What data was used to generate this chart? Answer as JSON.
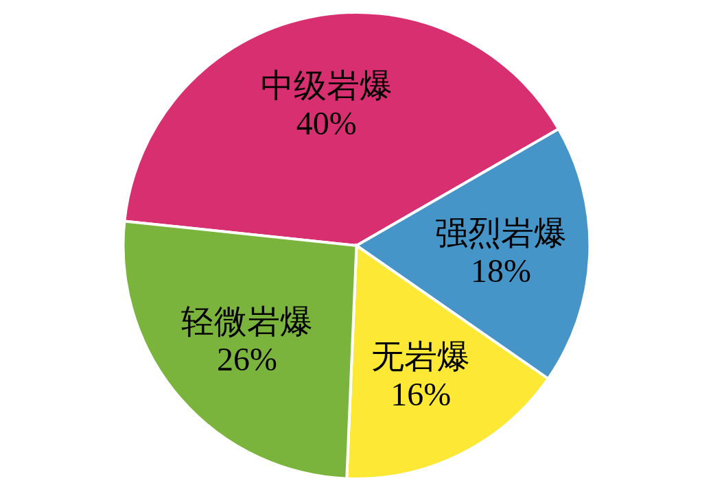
{
  "chart_data": {
    "type": "pie",
    "categories": [
      "中级岩爆",
      "强烈岩爆",
      "无岩爆",
      "轻微岩爆"
    ],
    "values": [
      40,
      18,
      16,
      26
    ],
    "colors": [
      "#d72f6f",
      "#4695c8",
      "#fde835",
      "#7ab43c"
    ],
    "value_labels": [
      "40%",
      "18%",
      "16%",
      "26%"
    ]
  }
}
